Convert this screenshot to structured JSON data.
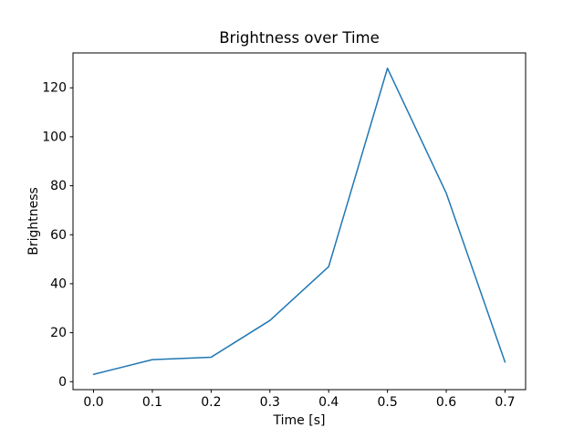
{
  "chart_data": {
    "type": "line",
    "title": "Brightness over Time",
    "xlabel": "Time [s]",
    "ylabel": "Brightness",
    "x": [
      0.0,
      0.1,
      0.2,
      0.3,
      0.4,
      0.5,
      0.6,
      0.7
    ],
    "values": [
      3,
      9,
      10,
      25,
      47,
      128,
      77,
      8
    ],
    "xlim": [
      -0.035,
      0.735
    ],
    "ylim": [
      -3.25,
      134.25
    ],
    "xticks": [
      0.0,
      0.1,
      0.2,
      0.3,
      0.4,
      0.5,
      0.6,
      0.7
    ],
    "xtick_labels": [
      "0.0",
      "0.1",
      "0.2",
      "0.3",
      "0.4",
      "0.5",
      "0.6",
      "0.7"
    ],
    "yticks": [
      0,
      20,
      40,
      60,
      80,
      100,
      120
    ],
    "ytick_labels": [
      "0",
      "20",
      "40",
      "60",
      "80",
      "100",
      "120"
    ],
    "line_color": "#1f77b4",
    "spine_color": "#000000",
    "background_color": "#ffffff",
    "grid": false,
    "legend_position": "none"
  }
}
